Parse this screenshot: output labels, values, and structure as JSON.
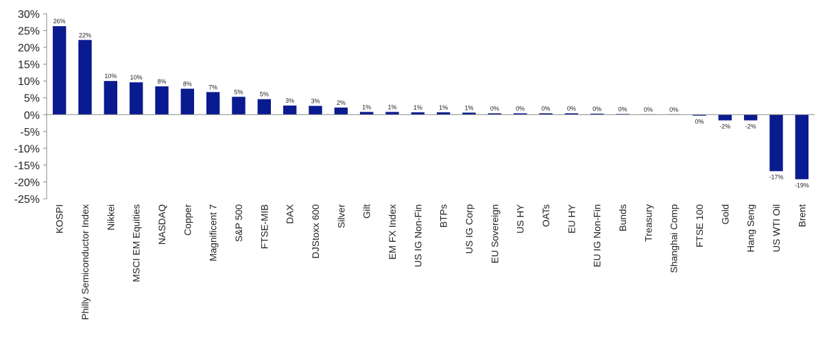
{
  "chart_data": {
    "type": "bar",
    "categories": [
      "KOSPI",
      "Philly Semiconductor Index",
      "Nikkei",
      "MSCI EM Equities",
      "NASDAQ",
      "Copper",
      "Magnificent 7",
      "S&P 500",
      "FTSE-MIB",
      "DAX",
      "DJStoxx 600",
      "Silver",
      "Gilt",
      "EM FX Index",
      "US IG Non-Fin",
      "BTPs",
      "US IG Corp",
      "EU Sovereign",
      "US HY",
      "OATs",
      "EU HY",
      "EU IG Non-Fin",
      "Bunds",
      "Treasury",
      "Shanghai Comp",
      "FTSE 100",
      "Gold",
      "Hang Seng",
      "US WTI Oil",
      "Brent"
    ],
    "values": [
      26.3,
      22.2,
      10.0,
      9.6,
      8.4,
      7.7,
      6.7,
      5.3,
      4.6,
      2.7,
      2.6,
      2.1,
      0.8,
      0.8,
      0.7,
      0.7,
      0.6,
      0.4,
      0.4,
      0.4,
      0.4,
      0.3,
      0.2,
      0.1,
      0.1,
      -0.3,
      -1.7,
      -1.7,
      -16.8,
      -19.2
    ],
    "value_labels": [
      "26%",
      "22%",
      "10%",
      "10%",
      "8%",
      "8%",
      "7%",
      "5%",
      "5%",
      "3%",
      "3%",
      "2%",
      "1%",
      "1%",
      "1%",
      "1%",
      "1%",
      "0%",
      "0%",
      "0%",
      "0%",
      "0%",
      "0%",
      "0%",
      "0%",
      "0%",
      "-2%",
      "-2%",
      "-17%",
      "-19%"
    ],
    "color": "#0a1a8f",
    "ylim": [
      -25,
      30
    ],
    "yticks": [
      {
        "value": -25,
        "label": "-25%"
      },
      {
        "value": -20,
        "label": "-20%"
      },
      {
        "value": -15,
        "label": "-15%"
      },
      {
        "value": -10,
        "label": "-10%"
      },
      {
        "value": -5,
        "label": "-5%"
      },
      {
        "value": 0,
        "label": "0%"
      },
      {
        "value": 5,
        "label": "5%"
      },
      {
        "value": 10,
        "label": "10%"
      },
      {
        "value": 15,
        "label": "15%"
      },
      {
        "value": 20,
        "label": "20%"
      },
      {
        "value": 25,
        "label": "25%"
      },
      {
        "value": 30,
        "label": "30%"
      }
    ],
    "grid": false
  }
}
